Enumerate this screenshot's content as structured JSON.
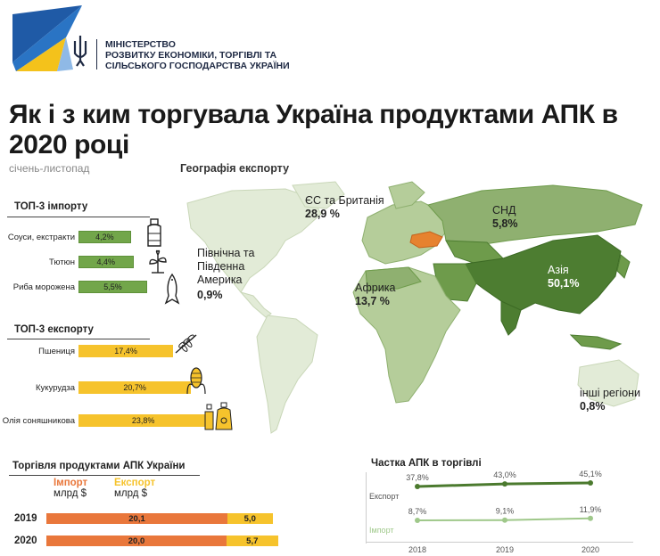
{
  "header": {
    "ministry_line1": "МІНІСТЕРСТВО",
    "ministry_line2": "РОЗВИТКУ ЕКОНОМІКИ, ТОРГІВЛІ ТА",
    "ministry_line3": "СІЛЬСЬКОГО ГОСПОДАРСТВА УКРАЇНИ"
  },
  "title": "Як і з ким торгувала Україна продуктами АПК в 2020 році",
  "subtitle": "січень-листопад",
  "geo_title": "Географія експорту",
  "regions": [
    {
      "name": "ЄС та Британія",
      "value": "28,9 %"
    },
    {
      "name": "СНД",
      "value": "5,8%"
    },
    {
      "name": "Північна та Південна Америка",
      "value": "0,9%"
    },
    {
      "name": "Африка",
      "value": "13,7 %"
    },
    {
      "name": "Азія",
      "value": "50,1%"
    },
    {
      "name": "інші регіони",
      "value": "0,8%"
    }
  ],
  "colors": {
    "map_light": "#e2ebd7",
    "map_mid": "#b5cd9a",
    "map_dark": "#6e9b4b",
    "map_darker": "#4d7d31",
    "ukraine": "#e6822f",
    "green_bar": "#72a64a",
    "yellow_bar": "#f6c32c",
    "import_bar": "#e9773b",
    "export_line": "#4b7a2e",
    "import_line": "#9fc88a"
  },
  "chart_data": [
    {
      "type": "bar",
      "title": "ТОП-3 імпорту",
      "categories": [
        "Соуси, екстракти",
        "Тютюн",
        "Риба морожена"
      ],
      "values": [
        4.2,
        4.4,
        5.5
      ],
      "value_labels": [
        "4,2%",
        "4,4%",
        "5,5%"
      ],
      "icons": [
        "sauce-bottle-icon",
        "tobacco-plant-icon",
        "fish-icon"
      ]
    },
    {
      "type": "bar",
      "title": "ТОП-3 експорту",
      "categories": [
        "Пшениця",
        "Кукурудза",
        "Олія соняшникова"
      ],
      "values": [
        17.4,
        20.7,
        23.8
      ],
      "value_labels": [
        "17,4%",
        "20,7%",
        "23,8%"
      ],
      "icons": [
        "wheat-icon",
        "corn-icon",
        "oil-bottles-icon"
      ]
    },
    {
      "type": "bar",
      "title": "Торгівля продуктами АПК України",
      "legend": [
        "Імпорт млрд $",
        "Експорт млрд $"
      ],
      "legend_import_line1": "Імпорт",
      "legend_import_line2": "млрд $",
      "legend_export_line1": "Експорт",
      "legend_export_line2": "млрд $",
      "categories": [
        "2019",
        "2020"
      ],
      "series": [
        {
          "name": "Імпорт млрд $",
          "values": [
            20.1,
            20.0
          ],
          "labels": [
            "20,1",
            "20,0"
          ]
        },
        {
          "name": "Експорт млрд $",
          "values": [
            5.0,
            5.7
          ],
          "labels": [
            "5,0",
            "5,7"
          ]
        }
      ]
    },
    {
      "type": "line",
      "title": "Частка АПК в торгівлі",
      "x": [
        "2018",
        "2019",
        "2020"
      ],
      "series": [
        {
          "name": "Експорт",
          "values": [
            37.8,
            43.0,
            45.1
          ],
          "labels": [
            "37,8%",
            "43,0%",
            "45,1%"
          ]
        },
        {
          "name": "Імпорт",
          "values": [
            8.7,
            9.1,
            11.9
          ],
          "labels": [
            "8,7%",
            "9,1%",
            "11,9%"
          ]
        }
      ]
    }
  ]
}
